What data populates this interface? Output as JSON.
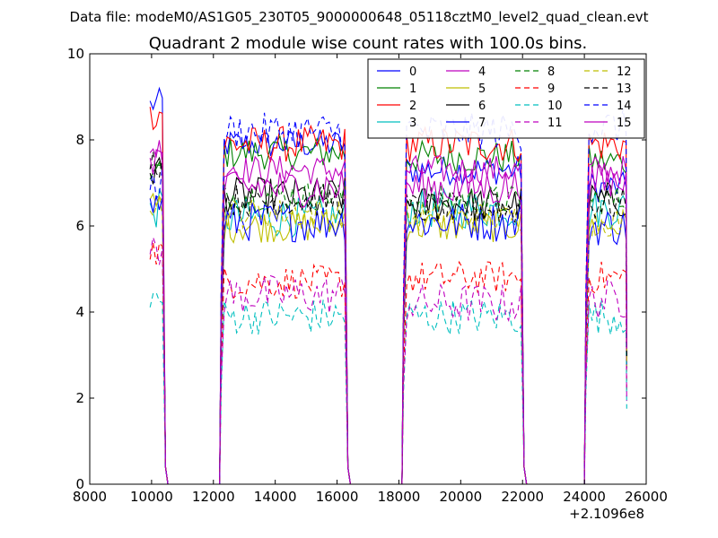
{
  "chart_data": {
    "type": "line",
    "suptitle": "Data file: modeM0/AS1G05_230T05_9000000648_05118cztM0_level2_quad_clean.evt",
    "title": "Quadrant 2 module wise count rates with 100.0s bins.",
    "xlabel": "",
    "ylabel": "",
    "x_offset_label": "+2.1096e8",
    "xlim": [
      8000,
      26000
    ],
    "ylim": [
      0,
      10
    ],
    "x_ticks": [
      8000,
      10000,
      12000,
      14000,
      16000,
      18000,
      20000,
      22000,
      24000,
      26000
    ],
    "y_ticks": [
      0,
      2,
      4,
      6,
      8,
      10
    ],
    "legend": {
      "placement": "top-right",
      "columns": 4
    },
    "segments": [
      {
        "start": 9950,
        "end": 10350
      },
      {
        "start": 12250,
        "end": 16250
      },
      {
        "start": 18150,
        "end": 21950
      },
      {
        "start": 24050,
        "end": 25350
      }
    ],
    "bin_seconds": 100,
    "series": [
      {
        "name": "0",
        "color": "#0000ff",
        "style": "solid",
        "levels": [
          8.85,
          7.9,
          7.3,
          6.9
        ]
      },
      {
        "name": "1",
        "color": "#008000",
        "style": "solid",
        "levels": [
          7.2,
          7.7,
          7.6,
          7.5
        ]
      },
      {
        "name": "2",
        "color": "#ff0000",
        "style": "solid",
        "levels": [
          8.65,
          7.9,
          7.9,
          7.9
        ]
      },
      {
        "name": "3",
        "color": "#00bfbf",
        "style": "solid",
        "levels": [
          6.4,
          6.2,
          6.4,
          6.4
        ]
      },
      {
        "name": "4",
        "color": "#bf00bf",
        "style": "solid",
        "levels": [
          7.8,
          7.3,
          7.3,
          7.3
        ]
      },
      {
        "name": "5",
        "color": "#bfbf00",
        "style": "solid",
        "levels": [
          6.5,
          6.0,
          6.0,
          6.0
        ]
      },
      {
        "name": "6",
        "color": "#000000",
        "style": "solid",
        "levels": [
          7.3,
          6.7,
          6.5,
          6.6
        ]
      },
      {
        "name": "7",
        "color": "#0000ff",
        "style": "solid",
        "levels": [
          6.5,
          6.1,
          6.1,
          6.0
        ]
      },
      {
        "name": "8",
        "color": "#008000",
        "style": "dashed",
        "levels": [
          7.3,
          6.7,
          6.6,
          6.6
        ]
      },
      {
        "name": "9",
        "color": "#ff0000",
        "style": "dashed",
        "levels": [
          5.4,
          4.7,
          4.8,
          4.8
        ]
      },
      {
        "name": "10",
        "color": "#00bfbf",
        "style": "dashed",
        "levels": [
          4.3,
          3.9,
          3.9,
          3.9
        ]
      },
      {
        "name": "11",
        "color": "#bf00bf",
        "style": "dashed",
        "levels": [
          5.3,
          4.4,
          4.2,
          4.3
        ]
      },
      {
        "name": "12",
        "color": "#bfbf00",
        "style": "dashed",
        "levels": [
          6.5,
          6.3,
          6.2,
          6.1
        ]
      },
      {
        "name": "13",
        "color": "#000000",
        "style": "dashed",
        "levels": [
          7.5,
          6.6,
          6.4,
          6.5
        ]
      },
      {
        "name": "14",
        "color": "#0000ff",
        "style": "dashed",
        "levels": [
          7.0,
          8.2,
          8.2,
          8.3
        ]
      },
      {
        "name": "15",
        "color": "#bf00bf",
        "style": "solid",
        "levels": [
          7.6,
          6.9,
          6.9,
          7.0
        ]
      }
    ]
  }
}
